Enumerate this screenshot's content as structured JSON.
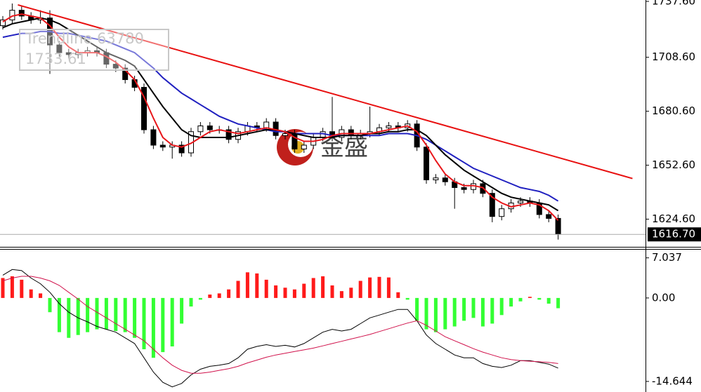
{
  "chart_data": [
    {
      "type": "candlestick",
      "open": [
        1725,
        1728,
        1733,
        1730,
        1728,
        1729,
        1715,
        1711,
        1710,
        1711,
        1712,
        1711,
        1705,
        1703,
        1697,
        1693,
        1671,
        1663,
        1662,
        1663,
        1659,
        1670,
        1673,
        1671,
        1671,
        1666,
        1670,
        1673,
        1672,
        1675,
        1668,
        1669,
        1661,
        1663,
        1667,
        1670,
        1667,
        1671,
        1668,
        1669,
        1670,
        1672,
        1673,
        1672,
        1674,
        1662,
        1645,
        1646,
        1644,
        1641,
        1640,
        1643,
        1638,
        1626,
        1630,
        1633,
        1634,
        1633,
        1627,
        1625
      ],
      "high": [
        1730,
        1736.5,
        1735,
        1732,
        1733,
        1733,
        1717,
        1713,
        1713,
        1714,
        1714,
        1713,
        1707,
        1705,
        1699,
        1695,
        1673,
        1665,
        1665,
        1665,
        1672,
        1675,
        1675,
        1673,
        1673,
        1672,
        1675,
        1675,
        1677,
        1677,
        1671,
        1671,
        1665,
        1669,
        1672,
        1688,
        1673,
        1673,
        1671,
        1683,
        1674,
        1675,
        1675,
        1676,
        1676,
        1664,
        1648,
        1648,
        1646,
        1643,
        1645,
        1645,
        1640,
        1632,
        1635,
        1636,
        1636,
        1635,
        1629,
        1627
      ],
      "low": [
        1723,
        1726,
        1728,
        1726,
        1726,
        1700,
        1709,
        1708,
        1708,
        1709,
        1709,
        1703,
        1701,
        1695,
        1691,
        1669,
        1661,
        1660,
        1656,
        1657,
        1657,
        1668,
        1669,
        1669,
        1664,
        1664,
        1668,
        1670,
        1670,
        1666,
        1666,
        1659,
        1659,
        1661,
        1665,
        1665,
        1665,
        1666,
        1666,
        1667,
        1668,
        1670,
        1670,
        1670,
        1660,
        1643,
        1643,
        1642,
        1630,
        1638,
        1638,
        1636,
        1623,
        1624,
        1628,
        1631,
        1631,
        1625,
        1623,
        1614
      ],
      "close": [
        1728,
        1733,
        1730,
        1728,
        1729,
        1715,
        1711,
        1710,
        1711,
        1712,
        1711,
        1705,
        1703,
        1697,
        1693,
        1671,
        1663,
        1662,
        1663,
        1659,
        1670,
        1673,
        1671,
        1671,
        1666,
        1670,
        1673,
        1672,
        1675,
        1668,
        1669,
        1661,
        1663,
        1667,
        1670,
        1667,
        1671,
        1668,
        1669,
        1670,
        1672,
        1673,
        1672,
        1674,
        1662,
        1645,
        1646,
        1644,
        1641,
        1640,
        1643,
        1638,
        1626,
        1630,
        1633,
        1634,
        1633,
        1627,
        1625,
        1617
      ],
      "ma": [
        {
          "color": "#2020c0",
          "values": [
            1719,
            1720,
            1721,
            1721,
            1722,
            1722,
            1721,
            1721,
            1720,
            1719,
            1718,
            1717,
            1715,
            1713,
            1711,
            1707,
            1703,
            1698,
            1694,
            1690,
            1687,
            1684,
            1681,
            1678,
            1676,
            1674,
            1673,
            1672,
            1671,
            1670,
            1670,
            1669,
            1669,
            1669,
            1669,
            1668,
            1668,
            1668,
            1668,
            1668,
            1668,
            1669,
            1669,
            1669,
            1668,
            1666,
            1663,
            1660,
            1657,
            1654,
            1651,
            1649,
            1647,
            1645,
            1643,
            1641,
            1640,
            1639,
            1637,
            1634
          ]
        },
        {
          "color": "#000000",
          "values": [
            1724,
            1726,
            1727,
            1728,
            1729,
            1728,
            1726,
            1723,
            1720,
            1717,
            1714,
            1711,
            1709,
            1707,
            1704,
            1697,
            1690,
            1683,
            1677,
            1671,
            1668,
            1667,
            1667,
            1667,
            1667,
            1668,
            1669,
            1670,
            1671,
            1671,
            1670,
            1669,
            1668,
            1667,
            1667,
            1667,
            1668,
            1668,
            1668,
            1669,
            1669,
            1670,
            1670,
            1671,
            1671,
            1668,
            1663,
            1658,
            1654,
            1650,
            1647,
            1644,
            1641,
            1638,
            1636,
            1635,
            1634,
            1633,
            1632,
            1629
          ]
        },
        {
          "color": "#e8161a",
          "values": [
            1727,
            1730,
            1731,
            1730,
            1729,
            1725,
            1719,
            1714,
            1711,
            1711,
            1711,
            1709,
            1706,
            1702,
            1697,
            1688,
            1677,
            1667,
            1663,
            1662,
            1664,
            1667,
            1670,
            1671,
            1670,
            1669,
            1670,
            1671,
            1672,
            1671,
            1670,
            1667,
            1665,
            1665,
            1666,
            1668,
            1669,
            1669,
            1669,
            1669,
            1670,
            1671,
            1672,
            1673,
            1670,
            1663,
            1655,
            1648,
            1644,
            1642,
            1642,
            1641,
            1636,
            1633,
            1631,
            1632,
            1633,
            1632,
            1629,
            1624
          ]
        }
      ],
      "trendline": {
        "name": "Trendline 63780",
        "label": "1733.61",
        "color": "#e81010",
        "x": [
          1.6,
          66.9
        ],
        "values": [
          1735.8,
          1645.7
        ]
      },
      "last_price": {
        "value": 1616.7,
        "label": "1616.70"
      },
      "watermark": "金盛",
      "ylim": [
        1610.24,
        1738.32
      ],
      "yticks": [
        {
          "value": 1737.6,
          "label": "1737.60"
        },
        {
          "value": 1708.6,
          "label": "1708.60"
        },
        {
          "value": 1680.6,
          "label": "1680.60"
        },
        {
          "value": 1652.6,
          "label": "1652.60"
        },
        {
          "value": 1624.6,
          "label": "1624.60"
        }
      ]
    },
    {
      "type": "macd",
      "histogram": {
        "positive_color": "#ff1a1a",
        "negative_color": "#33ff33",
        "values": [
          3.5,
          3.8,
          3.2,
          1.5,
          0.8,
          -2.5,
          -6,
          -7,
          -6.5,
          -6,
          -5.5,
          -5.5,
          -5.8,
          -6,
          -7,
          -9,
          -10.5,
          -9.5,
          -8.5,
          -4.5,
          -1.5,
          -0.3,
          0.6,
          0.8,
          1.5,
          3,
          4.5,
          4.3,
          3.2,
          2.2,
          1.8,
          1.5,
          2.5,
          3.5,
          3.8,
          2.2,
          1.2,
          1.8,
          3,
          3.6,
          3.7,
          3.6,
          1,
          -0.3,
          -4,
          -5.5,
          -6,
          -5.5,
          -5,
          -4,
          -3.5,
          -5,
          -4.5,
          -3,
          -1.5,
          -0.6,
          0.2,
          -0.3,
          -1,
          -1.8
        ]
      },
      "lines": [
        {
          "color": "#000000",
          "values": [
            4,
            5,
            4.8,
            3.5,
            2.5,
            1,
            -1,
            -2.5,
            -3.5,
            -4.2,
            -5,
            -5.5,
            -6,
            -7,
            -8,
            -10.5,
            -13,
            -14.8,
            -15.6,
            -15,
            -13.5,
            -12.5,
            -12,
            -11.8,
            -11.5,
            -10.5,
            -9,
            -8.5,
            -8.2,
            -8.5,
            -8.3,
            -8.6,
            -8,
            -7,
            -6,
            -5.5,
            -5.8,
            -5.5,
            -4.5,
            -3.5,
            -3,
            -2.5,
            -2,
            -2,
            -4,
            -6.5,
            -8,
            -9,
            -10,
            -10.5,
            -10.5,
            -11.5,
            -12,
            -12.2,
            -11.8,
            -11,
            -11,
            -11.3,
            -11.6,
            -12.3
          ]
        },
        {
          "color": "#d0104a",
          "values": [
            3,
            3.5,
            3.8,
            3.8,
            3.5,
            3,
            2.2,
            1,
            -0.2,
            -1.5,
            -2.5,
            -3.5,
            -4.5,
            -5.5,
            -6.5,
            -7.5,
            -9,
            -10.5,
            -11.8,
            -12.7,
            -13.2,
            -13.2,
            -13,
            -12.7,
            -12.4,
            -12,
            -11.4,
            -10.9,
            -10.4,
            -10,
            -9.7,
            -9.4,
            -9.1,
            -8.8,
            -8.4,
            -8,
            -7.6,
            -7.2,
            -6.8,
            -6.4,
            -5.9,
            -5.4,
            -4.9,
            -4.4,
            -4,
            -4.8,
            -5.8,
            -6.8,
            -7.5,
            -8.2,
            -8.9,
            -9.5,
            -10,
            -10.5,
            -10.8,
            -11,
            -11.1,
            -11.2,
            -11.3,
            -11.5
          ]
        }
      ],
      "ylim": [
        -16.5,
        8.6
      ],
      "yticks": [
        7.037,
        {
          "value": 0,
          "label": "0.00"
        },
        -14.644
      ]
    }
  ]
}
